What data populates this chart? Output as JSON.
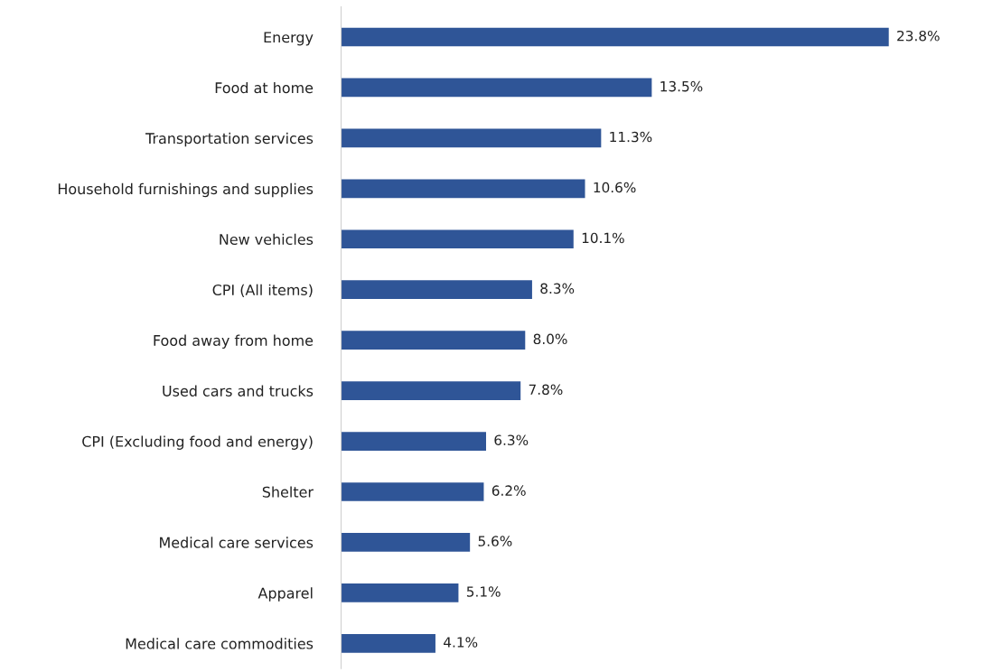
{
  "chart_data": {
    "type": "bar",
    "orientation": "horizontal",
    "categories": [
      "Energy",
      "Food at home",
      "Transportation services",
      "Household furnishings and supplies",
      "New vehicles",
      "CPI (All items)",
      "Food away from home",
      "Used cars and trucks",
      "CPI (Excluding food and energy)",
      "Shelter",
      "Medical care services",
      "Apparel",
      "Medical care commodities"
    ],
    "values": [
      23.8,
      13.5,
      11.3,
      10.6,
      10.1,
      8.3,
      8.0,
      7.8,
      6.3,
      6.2,
      5.6,
      5.1,
      4.1
    ],
    "value_labels": [
      "23.8%",
      "13.5%",
      "11.3%",
      "10.6%",
      "10.1%",
      "8.3%",
      "8.0%",
      "7.8%",
      "6.3%",
      "6.2%",
      "5.6%",
      "5.1%",
      "4.1%"
    ],
    "color": "#2f5597",
    "tick_labels": "y",
    "grid": false,
    "legend": false
  }
}
